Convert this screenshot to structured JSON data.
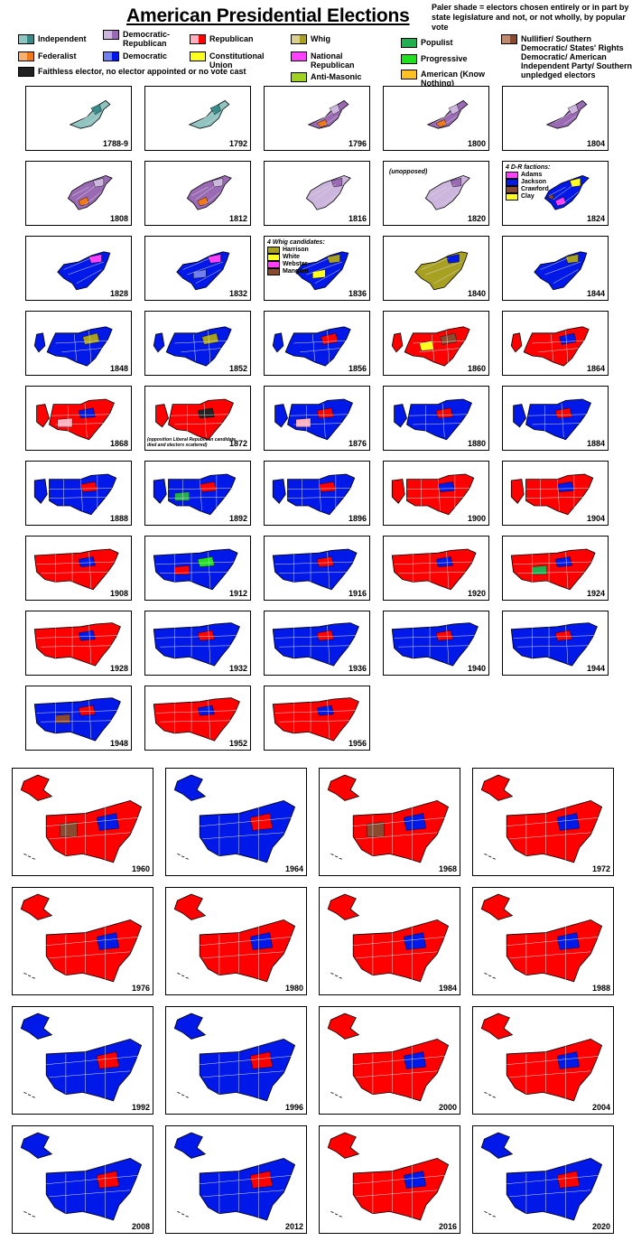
{
  "title": "American Presidential Elections",
  "note": "Paler shade = electors chosen entirely or in part by state legislature and not, or not wholly, by popular vote",
  "colors": {
    "independent": "#3a8a8a",
    "independent_pale": "#8fc4c0",
    "federalist": "#f07a1a",
    "federalist_pale": "#f8b070",
    "faithless": "#222222",
    "dr": "#9a6ab4",
    "dr_pale": "#cdb6dd",
    "democratic": "#0018e8",
    "democratic_pale": "#7080f0",
    "republican": "#ff0000",
    "republican_pale": "#ffb0c0",
    "constitutional_union": "#ffff20",
    "whig": "#a8a020",
    "whig_pale": "#d8d090",
    "national_republican": "#ff40ff",
    "anti_masonic": "#a0d020",
    "populist": "#20b050",
    "progressive": "#20e020",
    "know_nothing": "#ffc020",
    "nullifier": "#8a4a30",
    "nullifier_pale": "#c08a70",
    "green": "#20b050"
  },
  "legend": [
    {
      "label": "Independent",
      "c1": "independent_pale",
      "c2": "independent"
    },
    {
      "label": "Federalist",
      "c1": "federalist_pale",
      "c2": "federalist"
    },
    {
      "label": "Faithless elector, no elector appointed or no vote cast",
      "c1": "faithless",
      "c2": "faithless"
    },
    {
      "label": "Democratic-Republican",
      "c1": "dr_pale",
      "c2": "dr"
    },
    {
      "label": "Democratic",
      "c1": "democratic_pale",
      "c2": "democratic"
    },
    {
      "label": "Republican",
      "c1": "republican_pale",
      "c2": "republican"
    },
    {
      "label": "Constitutional Union",
      "c1": "constitutional_union",
      "c2": "constitutional_union"
    },
    {
      "label": "Whig",
      "c1": "whig_pale",
      "c2": "whig"
    },
    {
      "label": "National Republican",
      "c1": "national_republican",
      "c2": "national_republican"
    },
    {
      "label": "Anti-Masonic",
      "c1": "anti_masonic",
      "c2": "anti_masonic"
    },
    {
      "label": "Populist",
      "c1": "populist",
      "c2": "populist"
    },
    {
      "label": "Progressive",
      "c1": "progressive",
      "c2": "progressive"
    },
    {
      "label": "American (Know Nothing)",
      "c1": "know_nothing",
      "c2": "know_nothing"
    },
    {
      "label": "Nullifier/ Southern Democratic/ States' Rights Democratic/ American Independent Party/ Southern unpledged electors",
      "c1": "nullifier_pale",
      "c2": "nullifier"
    }
  ],
  "elections": [
    {
      "year": "1788-9",
      "era": 0,
      "main": "independent_pale",
      "acc": [
        "independent"
      ]
    },
    {
      "year": "1792",
      "era": 0,
      "main": "independent_pale",
      "acc": [
        "independent"
      ]
    },
    {
      "year": "1796",
      "era": 0,
      "main": "dr",
      "acc": [
        "dr_pale",
        "federalist"
      ]
    },
    {
      "year": "1800",
      "era": 0,
      "main": "dr",
      "acc": [
        "dr_pale",
        "federalist"
      ]
    },
    {
      "year": "1804",
      "era": 0,
      "main": "dr",
      "acc": [
        "dr_pale"
      ]
    },
    {
      "year": "1808",
      "era": 1,
      "main": "dr",
      "acc": [
        "dr_pale",
        "federalist"
      ]
    },
    {
      "year": "1812",
      "era": 1,
      "main": "dr",
      "acc": [
        "dr_pale",
        "federalist"
      ]
    },
    {
      "year": "1816",
      "era": 1,
      "main": "dr_pale",
      "acc": [
        "dr"
      ]
    },
    {
      "year": "1820",
      "era": 1,
      "main": "dr_pale",
      "acc": [
        "dr"
      ],
      "note": "(unopposed)"
    },
    {
      "year": "1824",
      "era": 1,
      "main": "democratic",
      "acc": [
        "constitutional_union",
        "national_republican",
        "nullifier"
      ],
      "legend_title": "4 D-R factions:",
      "legend": [
        [
          "Adams",
          "national_republican"
        ],
        [
          "Jackson",
          "democratic"
        ],
        [
          "Crawford",
          "nullifier"
        ],
        [
          "Clay",
          "constitutional_union"
        ]
      ]
    },
    {
      "year": "1828",
      "era": 2,
      "main": "democratic",
      "acc": [
        "national_republican"
      ]
    },
    {
      "year": "1832",
      "era": 2,
      "main": "democratic",
      "acc": [
        "national_republican",
        "democratic_pale"
      ]
    },
    {
      "year": "1836",
      "era": 2,
      "main": "democratic",
      "acc": [
        "whig",
        "constitutional_union"
      ],
      "legend_title": "4 Whig candidates:",
      "legend": [
        [
          "Harrison",
          "whig"
        ],
        [
          "White",
          "constitutional_union"
        ],
        [
          "Webster",
          "national_republican"
        ],
        [
          "Mangum",
          "nullifier"
        ]
      ]
    },
    {
      "year": "1840",
      "era": 2,
      "main": "whig",
      "acc": [
        "democratic"
      ]
    },
    {
      "year": "1844",
      "era": 2,
      "main": "democratic",
      "acc": [
        "whig"
      ]
    },
    {
      "year": "1848",
      "era": 3,
      "main": "democratic",
      "acc": [
        "whig"
      ]
    },
    {
      "year": "1852",
      "era": 3,
      "main": "democratic",
      "acc": [
        "whig"
      ]
    },
    {
      "year": "1856",
      "era": 3,
      "main": "democratic",
      "acc": [
        "republican"
      ]
    },
    {
      "year": "1860",
      "era": 3,
      "main": "republican",
      "acc": [
        "nullifier",
        "constitutional_union"
      ]
    },
    {
      "year": "1864",
      "era": 3,
      "main": "republican",
      "acc": [
        "democratic"
      ]
    },
    {
      "year": "1868",
      "era": 4,
      "main": "republican",
      "acc": [
        "democratic",
        "republican_pale"
      ]
    },
    {
      "year": "1872",
      "era": 4,
      "main": "republican",
      "acc": [
        "faithless"
      ],
      "note": "(opposition Liberal Republican candidate died and electors scattered)"
    },
    {
      "year": "1876",
      "era": 4,
      "main": "democratic",
      "acc": [
        "republican",
        "republican_pale"
      ]
    },
    {
      "year": "1880",
      "era": 4,
      "main": "democratic",
      "acc": [
        "republican"
      ]
    },
    {
      "year": "1884",
      "era": 4,
      "main": "democratic",
      "acc": [
        "republican"
      ]
    },
    {
      "year": "1888",
      "era": 5,
      "main": "democratic",
      "acc": [
        "republican"
      ]
    },
    {
      "year": "1892",
      "era": 5,
      "main": "democratic",
      "acc": [
        "republican",
        "populist"
      ]
    },
    {
      "year": "1896",
      "era": 5,
      "main": "democratic",
      "acc": [
        "republican"
      ]
    },
    {
      "year": "1900",
      "era": 5,
      "main": "republican",
      "acc": [
        "democratic"
      ]
    },
    {
      "year": "1904",
      "era": 5,
      "main": "republican",
      "acc": [
        "democratic"
      ]
    },
    {
      "year": "1908",
      "era": 6,
      "main": "republican",
      "acc": [
        "democratic"
      ]
    },
    {
      "year": "1912",
      "era": 6,
      "main": "democratic",
      "acc": [
        "progressive",
        "republican"
      ]
    },
    {
      "year": "1916",
      "era": 6,
      "main": "democratic",
      "acc": [
        "republican"
      ]
    },
    {
      "year": "1920",
      "era": 6,
      "main": "republican",
      "acc": [
        "democratic"
      ]
    },
    {
      "year": "1924",
      "era": 6,
      "main": "republican",
      "acc": [
        "democratic",
        "populist"
      ]
    },
    {
      "year": "1928",
      "era": 7,
      "main": "republican",
      "acc": [
        "democratic"
      ]
    },
    {
      "year": "1932",
      "era": 7,
      "main": "democratic",
      "acc": [
        "republican"
      ]
    },
    {
      "year": "1936",
      "era": 7,
      "main": "democratic",
      "acc": [
        "republican"
      ]
    },
    {
      "year": "1940",
      "era": 7,
      "main": "democratic",
      "acc": [
        "republican"
      ]
    },
    {
      "year": "1944",
      "era": 7,
      "main": "democratic",
      "acc": [
        "republican"
      ]
    },
    {
      "year": "1948",
      "era": 8,
      "main": "democratic",
      "acc": [
        "republican",
        "nullifier"
      ]
    },
    {
      "year": "1952",
      "era": 8,
      "main": "republican",
      "acc": [
        "democratic"
      ]
    },
    {
      "year": "1956",
      "era": 8,
      "main": "republican",
      "acc": [
        "democratic"
      ]
    },
    {
      "year": "1960",
      "era": 9,
      "main": "republican",
      "acc": [
        "democratic",
        "nullifier"
      ]
    },
    {
      "year": "1964",
      "era": 9,
      "main": "democratic",
      "acc": [
        "republican"
      ]
    },
    {
      "year": "1968",
      "era": 9,
      "main": "republican",
      "acc": [
        "democratic",
        "nullifier"
      ]
    },
    {
      "year": "1972",
      "era": 9,
      "main": "republican",
      "acc": [
        "democratic"
      ]
    },
    {
      "year": "1976",
      "era": 9,
      "main": "republican",
      "acc": [
        "democratic"
      ]
    },
    {
      "year": "1980",
      "era": 9,
      "main": "republican",
      "acc": [
        "democratic"
      ]
    },
    {
      "year": "1984",
      "era": 9,
      "main": "republican",
      "acc": [
        "democratic"
      ]
    },
    {
      "year": "1988",
      "era": 9,
      "main": "republican",
      "acc": [
        "democratic"
      ]
    },
    {
      "year": "1992",
      "era": 9,
      "main": "democratic",
      "acc": [
        "republican"
      ]
    },
    {
      "year": "1996",
      "era": 9,
      "main": "democratic",
      "acc": [
        "republican"
      ]
    },
    {
      "year": "2000",
      "era": 9,
      "main": "republican",
      "acc": [
        "democratic"
      ]
    },
    {
      "year": "2004",
      "era": 9,
      "main": "republican",
      "acc": [
        "democratic"
      ]
    },
    {
      "year": "2008",
      "era": 9,
      "main": "democratic",
      "acc": [
        "republican"
      ]
    },
    {
      "year": "2012",
      "era": 9,
      "main": "democratic",
      "acc": [
        "republican"
      ]
    },
    {
      "year": "2016",
      "era": 9,
      "main": "republican",
      "acc": [
        "democratic"
      ]
    },
    {
      "year": "2020",
      "era": 9,
      "main": "democratic",
      "acc": [
        "republican"
      ]
    }
  ]
}
